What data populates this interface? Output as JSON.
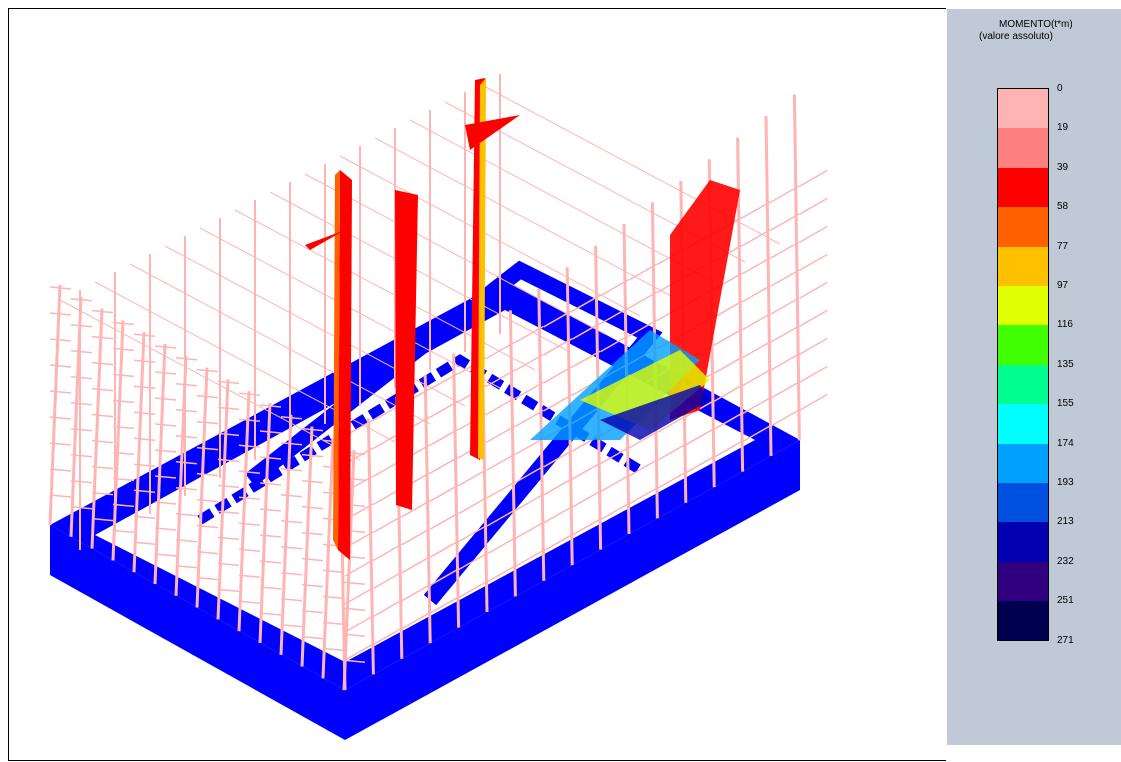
{
  "legend": {
    "title": "MOMENTO(t*m)",
    "subtitle": "(valore assoluto)",
    "labels": [
      0,
      19,
      39,
      58,
      77,
      97,
      116,
      135,
      155,
      174,
      193,
      213,
      232,
      251,
      271
    ],
    "colors": [
      "#ffb4b4",
      "#ff8080",
      "#ff0000",
      "#ff6000",
      "#ffc000",
      "#e0ff00",
      "#40ff00",
      "#00ff90",
      "#00ffff",
      "#00a0ff",
      "#0050e0",
      "#0000b0",
      "#300080",
      "#000050"
    ]
  }
}
